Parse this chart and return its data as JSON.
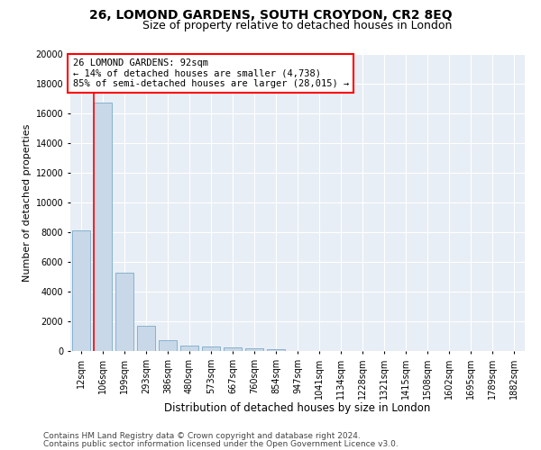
{
  "title1": "26, LOMOND GARDENS, SOUTH CROYDON, CR2 8EQ",
  "title2": "Size of property relative to detached houses in London",
  "xlabel": "Distribution of detached houses by size in London",
  "ylabel": "Number of detached properties",
  "categories": [
    "12sqm",
    "106sqm",
    "199sqm",
    "293sqm",
    "386sqm",
    "480sqm",
    "573sqm",
    "667sqm",
    "760sqm",
    "854sqm",
    "947sqm",
    "1041sqm",
    "1134sqm",
    "1228sqm",
    "1321sqm",
    "1415sqm",
    "1508sqm",
    "1602sqm",
    "1695sqm",
    "1789sqm",
    "1882sqm"
  ],
  "values": [
    8100,
    16700,
    5300,
    1700,
    700,
    350,
    280,
    220,
    180,
    150,
    0,
    0,
    0,
    0,
    0,
    0,
    0,
    0,
    0,
    0,
    0
  ],
  "bar_color": "#c8d8e8",
  "bar_edgecolor": "#7aaac8",
  "vline_color": "red",
  "vline_pos": 0.575,
  "annotation_title": "26 LOMOND GARDENS: 92sqm",
  "annotation_line1": "← 14% of detached houses are smaller (4,738)",
  "annotation_line2": "85% of semi-detached houses are larger (28,015) →",
  "annotation_box_color": "white",
  "annotation_box_edgecolor": "red",
  "ylim": [
    0,
    20000
  ],
  "yticks": [
    0,
    2000,
    4000,
    6000,
    8000,
    10000,
    12000,
    14000,
    16000,
    18000,
    20000
  ],
  "footer1": "Contains HM Land Registry data © Crown copyright and database right 2024.",
  "footer2": "Contains public sector information licensed under the Open Government Licence v3.0.",
  "background_color": "#ffffff",
  "plot_bg_color": "#e8eef5",
  "grid_color": "#ffffff",
  "title1_fontsize": 10,
  "title2_fontsize": 9,
  "xlabel_fontsize": 8.5,
  "ylabel_fontsize": 8,
  "tick_fontsize": 7,
  "annotation_fontsize": 7.5,
  "footer_fontsize": 6.5
}
